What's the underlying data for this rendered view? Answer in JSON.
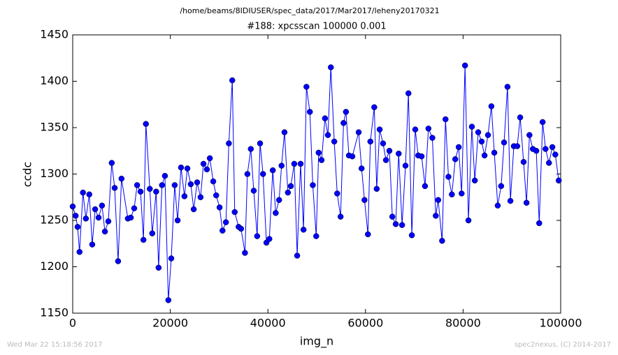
{
  "chart_data": {
    "type": "line",
    "suptitle": "/home/beams/8IDIUSER/spec_data/2017/Mar2017/leheny20170321",
    "title": "#188: xpcsscan 100000 0.001",
    "x_label": "img_n",
    "y_label": "ccdc",
    "footer_left": "Wed Mar 22 15:18:56 2017",
    "footer_right": "spec2nexus, (C) 2014-2017",
    "xlim": [
      0,
      100000
    ],
    "ylim": [
      1150,
      1450
    ],
    "xticks": [
      0,
      20000,
      40000,
      60000,
      80000,
      100000
    ],
    "yticks": [
      1150,
      1200,
      1250,
      1300,
      1350,
      1400,
      1450
    ],
    "grid": false,
    "series": [
      {
        "color": "#0000ff",
        "x": [
          0,
          600,
          1000,
          1400,
          2100,
          2700,
          3400,
          4000,
          4600,
          5300,
          6000,
          6600,
          7300,
          8000,
          8600,
          9300,
          10000,
          11300,
          11900,
          12600,
          13200,
          13900,
          14500,
          15000,
          15800,
          16300,
          17100,
          17600,
          18300,
          18900,
          19600,
          20200,
          20900,
          21500,
          22200,
          22900,
          23500,
          24200,
          24800,
          25500,
          26200,
          26800,
          27500,
          28100,
          28800,
          29400,
          30100,
          30700,
          31400,
          32000,
          32700,
          33200,
          34000,
          34500,
          35300,
          35800,
          36500,
          37100,
          37800,
          38400,
          39000,
          39700,
          40300,
          41000,
          41600,
          42300,
          42800,
          43400,
          44100,
          44700,
          45400,
          46000,
          46700,
          47300,
          47900,
          48600,
          49200,
          49900,
          50400,
          51000,
          51700,
          52300,
          52900,
          53600,
          54200,
          54900,
          55500,
          56000,
          56600,
          57300,
          58600,
          59200,
          59800,
          60500,
          61000,
          61800,
          62300,
          62900,
          63600,
          64200,
          64900,
          65500,
          66200,
          66800,
          67500,
          68200,
          68800,
          69500,
          70200,
          70800,
          71500,
          72200,
          72900,
          73700,
          74400,
          74900,
          75700,
          76400,
          77000,
          77700,
          78400,
          79100,
          79700,
          80400,
          81100,
          81800,
          82400,
          83100,
          83800,
          84400,
          85100,
          85800,
          86400,
          87100,
          87800,
          88400,
          89100,
          89700,
          90400,
          91100,
          91700,
          92400,
          93000,
          93600,
          94300,
          95000,
          95600,
          96300,
          96900,
          97600,
          98300,
          98900,
          99600
        ],
        "values": [
          1265,
          1255,
          1243,
          1216,
          1280,
          1252,
          1278,
          1224,
          1262,
          1253,
          1266,
          1238,
          1249,
          1312,
          1285,
          1206,
          1295,
          1252,
          1253,
          1263,
          1288,
          1281,
          1229,
          1354,
          1284,
          1236,
          1281,
          1199,
          1288,
          1298,
          1164,
          1209,
          1288,
          1250,
          1307,
          1276,
          1306,
          1289,
          1262,
          1291,
          1275,
          1311,
          1305,
          1317,
          1292,
          1277,
          1264,
          1239,
          1248,
          1333,
          1401,
          1259,
          1243,
          1241,
          1215,
          1300,
          1327,
          1282,
          1233,
          1333,
          1300,
          1226,
          1230,
          1304,
          1258,
          1272,
          1309,
          1345,
          1280,
          1287,
          1311,
          1212,
          1311,
          1240,
          1394,
          1367,
          1288,
          1233,
          1323,
          1315,
          1360,
          1342,
          1415,
          1335,
          1279,
          1254,
          1355,
          1367,
          1320,
          1319,
          1345,
          1306,
          1272,
          1235,
          1335,
          1372,
          1284,
          1348,
          1333,
          1315,
          1325,
          1254,
          1246,
          1322,
          1245,
          1309,
          1387,
          1234,
          1348,
          1320,
          1319,
          1287,
          1349,
          1339,
          1255,
          1272,
          1228,
          1359,
          1297,
          1278,
          1316,
          1329,
          1279,
          1417,
          1250,
          1351,
          1293,
          1345,
          1335,
          1320,
          1342,
          1373,
          1323,
          1266,
          1287,
          1334,
          1394,
          1271,
          1330,
          1330,
          1361,
          1313,
          1269,
          1342,
          1327,
          1325,
          1247,
          1356,
          1327,
          1312,
          1329,
          1321,
          1293
        ]
      }
    ]
  }
}
